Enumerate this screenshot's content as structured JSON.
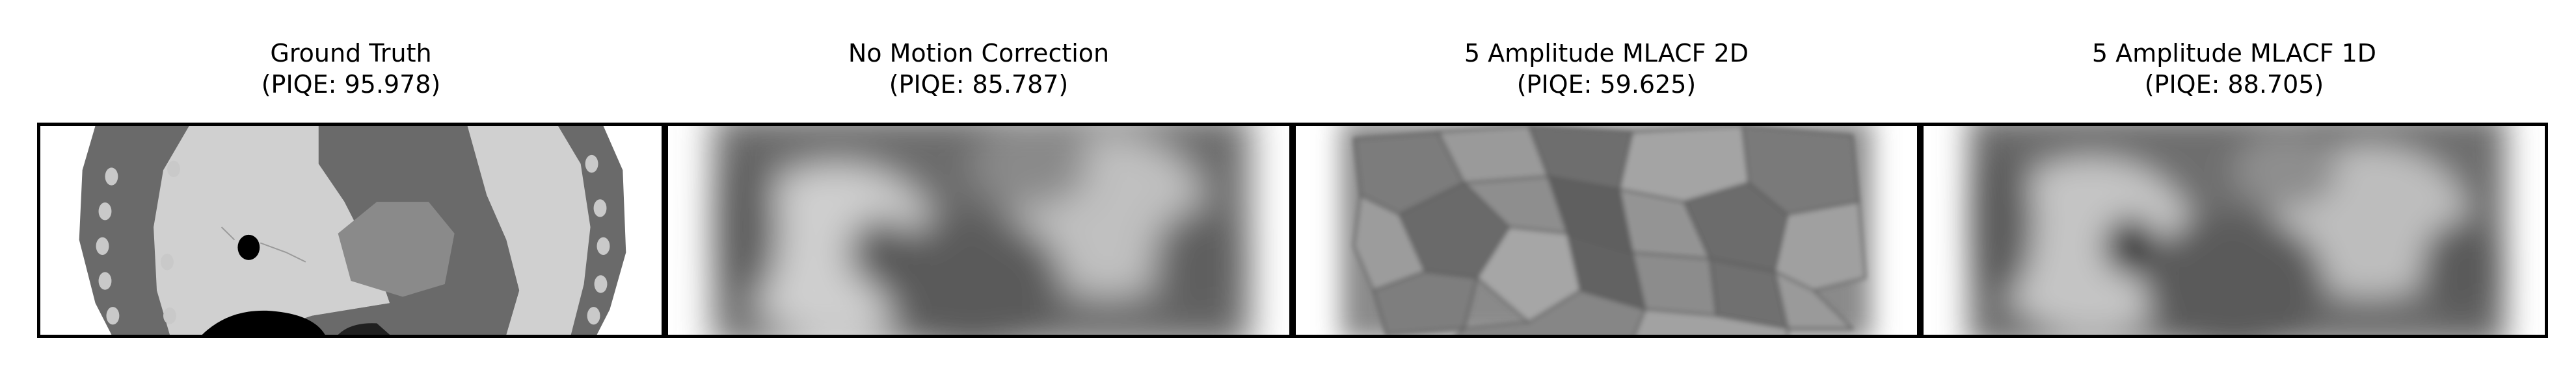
{
  "panels": [
    {
      "title_line1": "Ground Truth",
      "title_line2": "(PIQE: 95.978)"
    },
    {
      "title_line1": "No Motion Correction",
      "title_line2": "(PIQE: 85.787)"
    },
    {
      "title_line1": "5 Amplitude MLACF 2D",
      "title_line2": "(PIQE: 59.625)"
    },
    {
      "title_line1": "5 Amplitude MLACF 1D",
      "title_line2": "(PIQE: 88.705)"
    }
  ],
  "colors": {
    "background": "#ffffff",
    "frame_border": "#000000",
    "ground_truth_body_dark": "#707070",
    "ground_truth_lung": "#d2d2d2",
    "blurred_tissue": "#606060"
  }
}
